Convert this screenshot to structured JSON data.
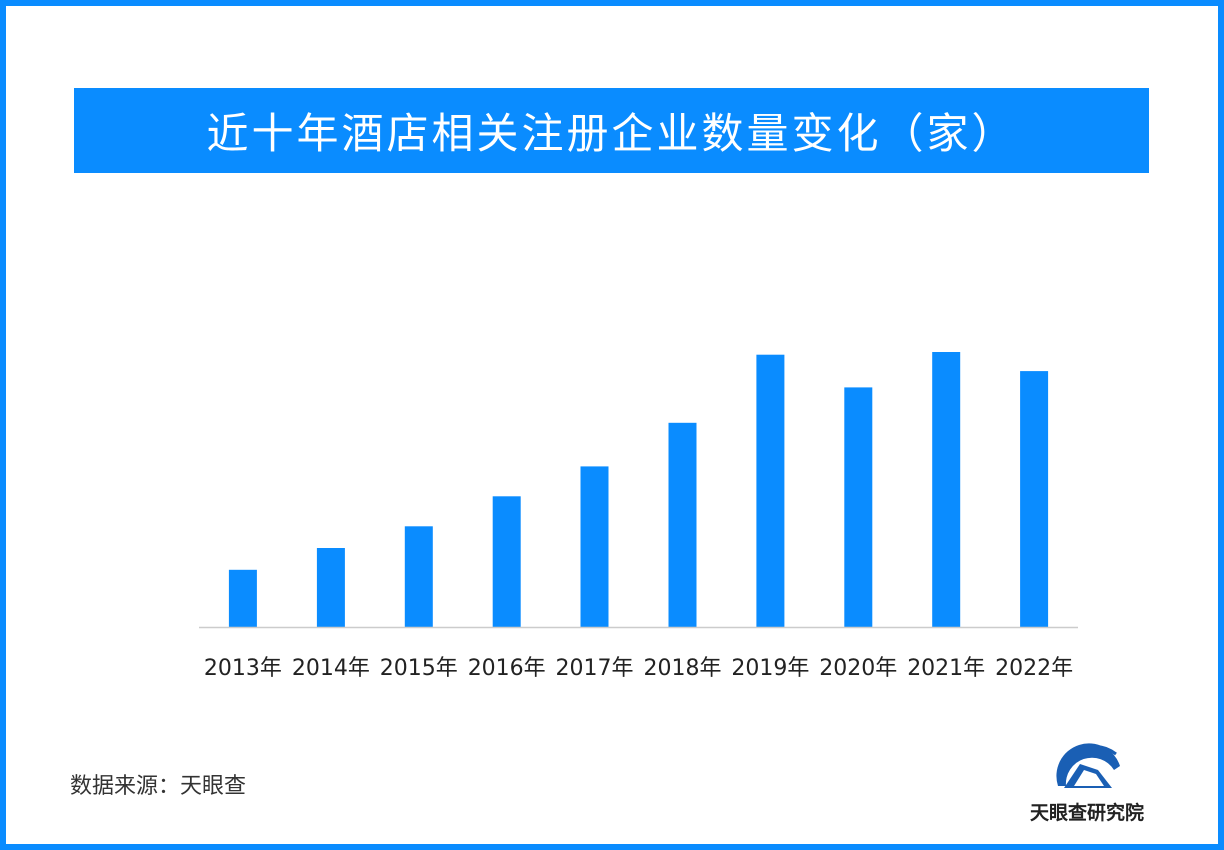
{
  "title": "近十年酒店相关注册企业数量变化（家）",
  "source_label": "数据来源：天眼查",
  "logo_text": "天眼查研究院",
  "colors": {
    "accent": "#0a8cff",
    "bar": "#0a8cff",
    "axis": "#cccccc",
    "logo_blue": "#1a5fb4"
  },
  "chart_data": {
    "type": "bar",
    "title": "近十年酒店相关注册企业数量变化（家）",
    "xlabel": "",
    "ylabel": "",
    "categories": [
      "2013年",
      "2014年",
      "2015年",
      "2016年",
      "2017年",
      "2018年",
      "2019年",
      "2020年",
      "2021年",
      "2022年"
    ],
    "values": [
      21,
      29,
      37,
      48,
      59,
      75,
      100,
      88,
      101,
      94
    ],
    "ylim": [
      0,
      101
    ],
    "grid": false,
    "y_axis_visible": false,
    "legend": "none"
  }
}
